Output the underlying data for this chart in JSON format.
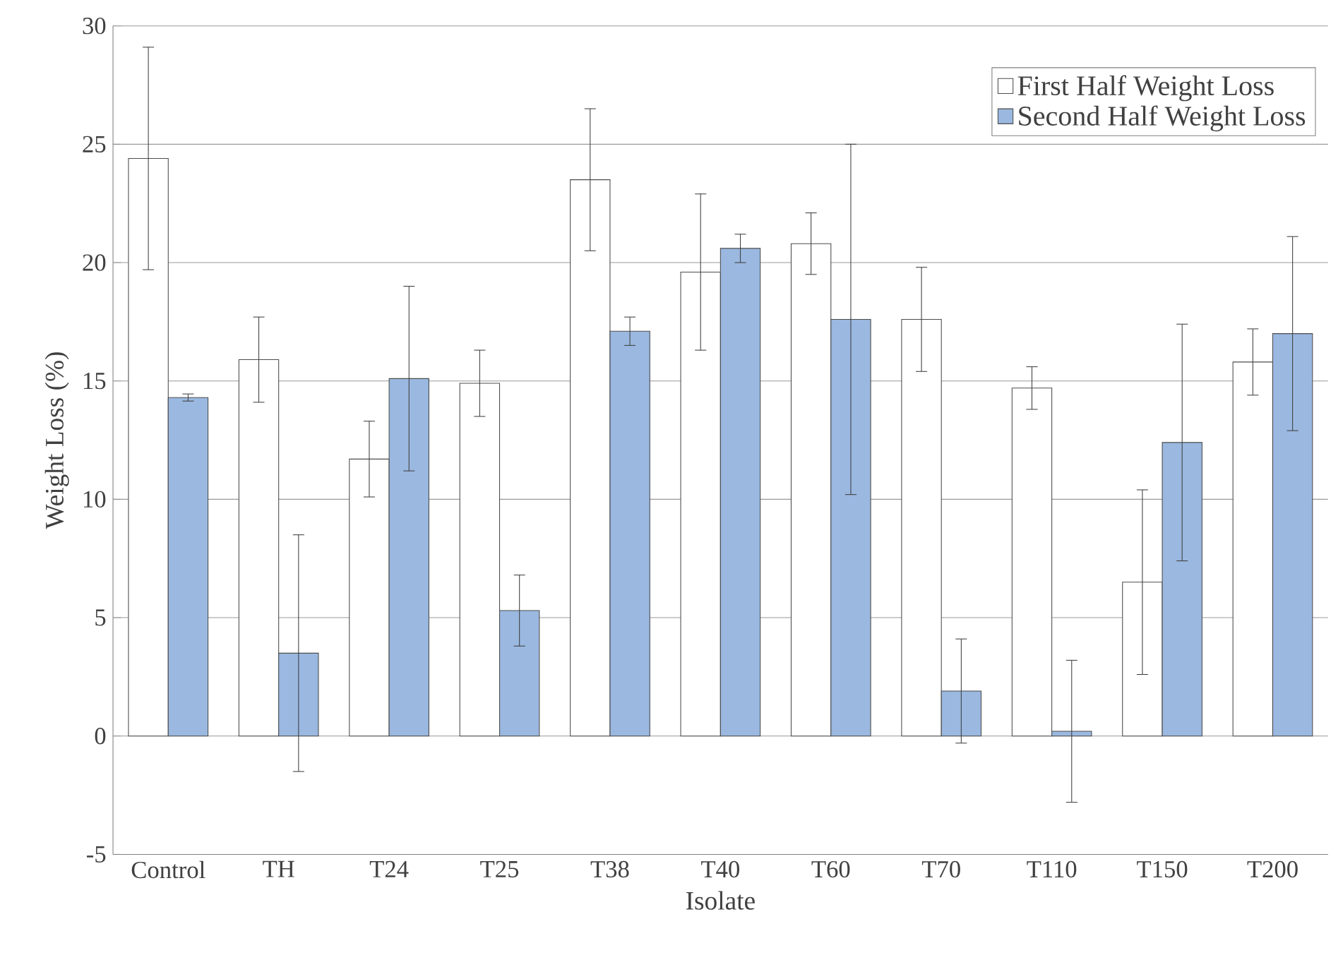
{
  "chart_data": {
    "type": "bar",
    "xlabel": "Isolate",
    "ylabel": "Weight Loss (%)",
    "categories": [
      "Control",
      "TH",
      "T24",
      "T25",
      "T38",
      "T40",
      "T60",
      "T70",
      "T110",
      "T150",
      "T200"
    ],
    "series": [
      {
        "name": "First Half Weight Loss",
        "color": "#ffffff",
        "values": [
          24.4,
          15.9,
          11.7,
          14.9,
          23.5,
          19.6,
          20.8,
          17.6,
          14.7,
          6.5,
          15.8
        ],
        "errors": [
          4.7,
          1.8,
          1.6,
          1.4,
          3.0,
          3.3,
          1.3,
          2.2,
          0.9,
          3.9,
          1.4
        ]
      },
      {
        "name": "Second Half Weight Loss",
        "color": "#9ab8e0",
        "values": [
          14.3,
          3.5,
          15.1,
          5.3,
          17.1,
          20.6,
          17.6,
          1.9,
          0.2,
          12.4,
          17.0
        ],
        "errors": [
          0.15,
          5.0,
          3.9,
          1.5,
          0.6,
          0.6,
          7.4,
          2.2,
          3.0,
          5.0,
          4.1
        ]
      }
    ],
    "ylim": [
      -5,
      30
    ],
    "yticks": [
      -5,
      0,
      5,
      10,
      15,
      20,
      25,
      30
    ],
    "grid": "y",
    "legend": "top right"
  }
}
